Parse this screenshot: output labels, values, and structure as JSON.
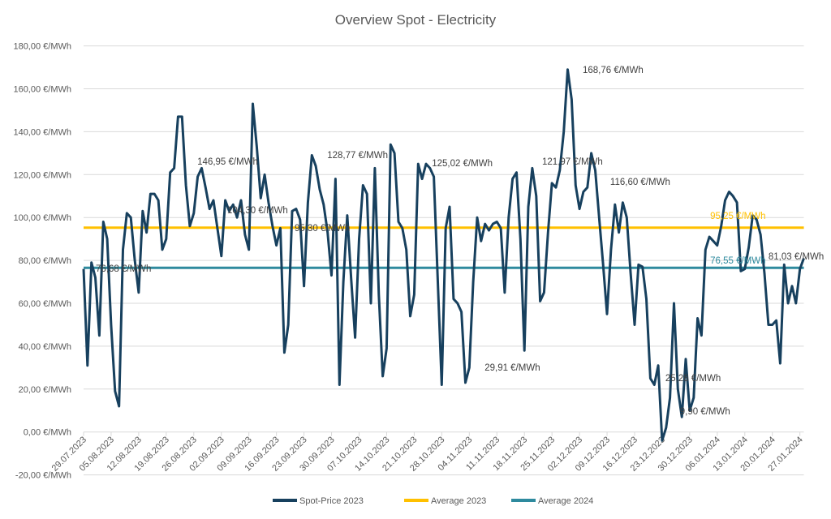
{
  "chart_data": {
    "type": "line",
    "title": "Overview Spot - Electricity",
    "xlabel": "",
    "ylabel": "",
    "ylim": [
      -20,
      180
    ],
    "ytick_step": 20,
    "ytick_labels": [
      "-20,00 €/MWh",
      "0,00 €/MWh",
      "20,00 €/MWh",
      "40,00 €/MWh",
      "60,00 €/MWh",
      "80,00 €/MWh",
      "100,00 €/MWh",
      "120,00 €/MWh",
      "140,00 €/MWh",
      "160,00 €/MWh",
      "180,00 €/MWh"
    ],
    "grid": true,
    "legend_position": "bottom",
    "x_start": "29.07.2023",
    "x_unit": "day",
    "xtick_labels": [
      "29.07.2023",
      "05.08.2023",
      "12.08.2023",
      "19.08.2023",
      "26.08.2023",
      "02.09.2023",
      "09.09.2023",
      "16.09.2023",
      "23.09.2023",
      "30.09.2023",
      "07.10.2023",
      "14.10.2023",
      "21.10.2023",
      "28.10.2023",
      "04.11.2023",
      "11.11.2023",
      "18.11.2023",
      "25.11.2023",
      "02.12.2023",
      "09.12.2023",
      "16.12.2023",
      "23.12.2023",
      "30.12.2023",
      "06.01.2024",
      "13.01.2024",
      "20.01.2024",
      "27.01.2024"
    ],
    "series": [
      {
        "name": "Spot-Price 2023",
        "color": "#17405e",
        "values": [
          76,
          31,
          79,
          72,
          45,
          98,
          90,
          50,
          19,
          12,
          85,
          102,
          100,
          80,
          65,
          103,
          93,
          111,
          111,
          108,
          85,
          90,
          121,
          123,
          147,
          147,
          115,
          96,
          102,
          119,
          123,
          114,
          104,
          108,
          95,
          82,
          108,
          103,
          106,
          100,
          108,
          92,
          85,
          153,
          133,
          109,
          120,
          107,
          96,
          87,
          95,
          37,
          50,
          103,
          104,
          99,
          68,
          107,
          129,
          124,
          113,
          106,
          93,
          73,
          118,
          22,
          70,
          101,
          71,
          44,
          90,
          115,
          111,
          60,
          123,
          64,
          26,
          39,
          134,
          130,
          98,
          95,
          85,
          54,
          64,
          125,
          118,
          125,
          123,
          119,
          70,
          22,
          95,
          105,
          62,
          60,
          56,
          23,
          30,
          70,
          100,
          89,
          97,
          94,
          97,
          98,
          95,
          65,
          100,
          118,
          121,
          90,
          38,
          105,
          123,
          110,
          61,
          65,
          93,
          116,
          114,
          122,
          140,
          169,
          155,
          115,
          104,
          112,
          114,
          130,
          122,
          100,
          78,
          55,
          85,
          106,
          93,
          107,
          100,
          74,
          50,
          78,
          77,
          62,
          25,
          22,
          31,
          -4,
          2,
          16,
          60,
          20,
          7,
          34,
          10,
          16,
          53,
          45,
          85,
          91,
          89,
          87,
          96,
          108,
          112,
          110,
          107,
          75,
          76,
          86,
          101,
          99,
          92,
          74,
          50,
          50,
          52,
          32,
          78,
          60,
          68,
          60,
          76,
          81
        ]
      },
      {
        "name": "Average 2023",
        "color": "#ffc000",
        "value": 95.25
      },
      {
        "name": "Average 2024",
        "color": "#2e8a9e",
        "value": 76.55
      }
    ],
    "annotations": [
      {
        "text": "146,95 €/MWh",
        "day": 28.9,
        "value": 124.6,
        "color": "#404040"
      },
      {
        "text": "104,30 €/MWh",
        "day": 36.5,
        "value": 102,
        "color": "#404040"
      },
      {
        "text": "95,30 €/MWh",
        "day": 53.6,
        "value": 93.6,
        "color": "#404040"
      },
      {
        "text": "76,68 €/MWh",
        "day": 3.1,
        "value": 74.7,
        "color": "#404040"
      },
      {
        "text": "128,77 €/MWh",
        "day": 61.9,
        "value": 127.6,
        "color": "#404040"
      },
      {
        "text": "125,02 €/MWh",
        "day": 88.5,
        "value": 123.9,
        "color": "#404040"
      },
      {
        "text": "29,91 €/MWh",
        "day": 101.9,
        "value": 28.6,
        "color": "#404040"
      },
      {
        "text": "121,97 €/MWh",
        "day": 116.5,
        "value": 124.6,
        "color": "#404040"
      },
      {
        "text": "168,76 €/MWh",
        "day": 126.8,
        "value": 167.4,
        "color": "#404040"
      },
      {
        "text": "116,60 €/MWh",
        "day": 133.8,
        "value": 115.2,
        "color": "#404040"
      },
      {
        "text": "95,25 €/MWh",
        "day": 159.2,
        "value": 99.3,
        "color": "#ffc000"
      },
      {
        "text": "76,55 €/MWh",
        "day": 159.2,
        "value": 78.5,
        "color": "#2e8a9e"
      },
      {
        "text": "81,03 €/MWh",
        "day": 174,
        "value": 80.4,
        "color": "#404040"
      },
      {
        "text": "25,28 €/MWh",
        "day": 147.8,
        "value": 23.7,
        "color": "#404040"
      },
      {
        "text": "9,90 €/MWh",
        "day": 151.5,
        "value": 8.2,
        "color": "#404040"
      }
    ]
  }
}
